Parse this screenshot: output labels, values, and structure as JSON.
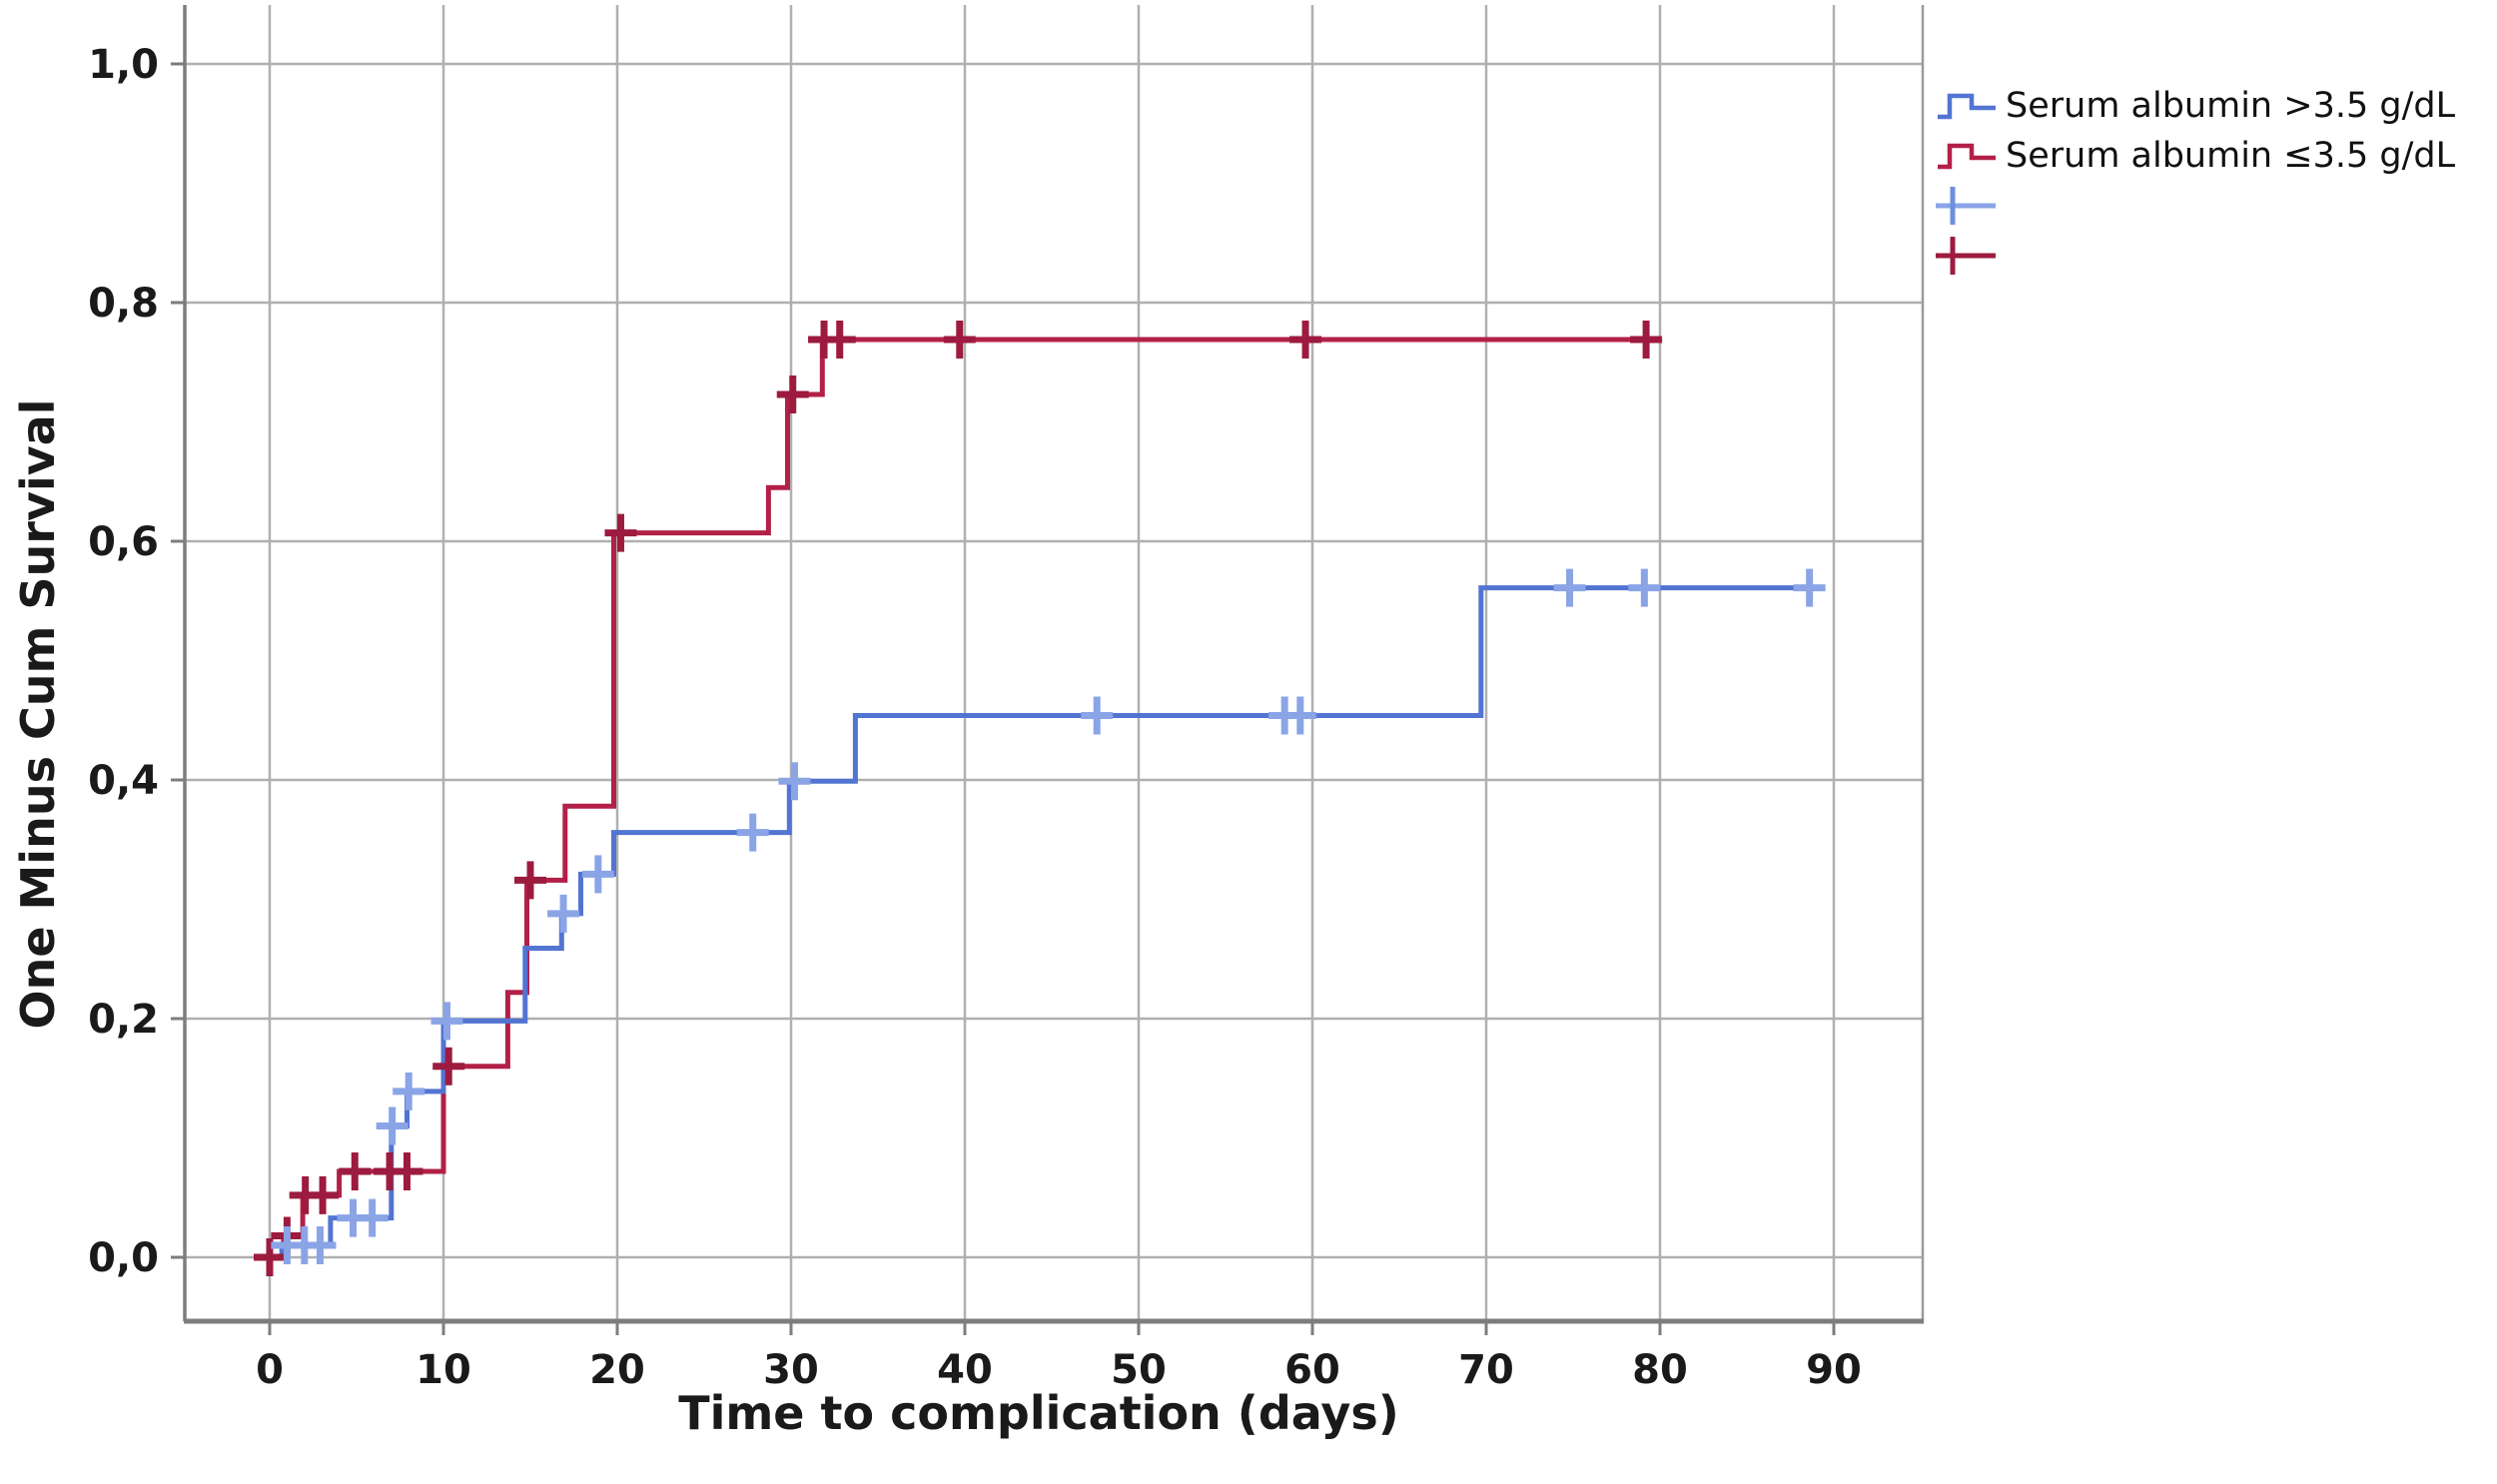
{
  "figure": {
    "background": "#ffffff"
  },
  "colors": {
    "blue_line": "#5274d2",
    "blue_censor": "#8aa4e6",
    "red_line": "#b22048",
    "red_censor": "#9c1b3f",
    "gridline": "#b0b0b0",
    "frame": "#7d7d7d",
    "text": "#1a1a1a"
  },
  "axes": {
    "x": {
      "title": "Time to complication (days)",
      "ticks": [
        0,
        10,
        20,
        30,
        40,
        50,
        60,
        70,
        80,
        90
      ],
      "tick_labels": [
        "0",
        "10",
        "20",
        "30",
        "40",
        "50",
        "60",
        "70",
        "80",
        "90"
      ]
    },
    "y": {
      "title": "One Minus Cum Survival",
      "ticks": [
        1.0,
        0.8,
        0.6,
        0.4,
        0.2,
        0.0
      ],
      "tick_labels": [
        "1,0",
        "0,8",
        "0,6",
        "0,4",
        "0,2",
        "0,0"
      ]
    }
  },
  "legend": {
    "entries": [
      {
        "label": "Serum albumin >3.5 g/dL",
        "type": "step-line",
        "color": "#5274d2"
      },
      {
        "label": "Serum albumin ≤3.5 g/dL",
        "type": "step-line",
        "color": "#b22048"
      },
      {
        "label": "",
        "type": "censor-mark",
        "color": "#8aa4e6"
      },
      {
        "label": "",
        "type": "censor-mark",
        "color": "#9c1b3f"
      }
    ]
  },
  "chart_data": {
    "type": "line",
    "subtype": "kaplan-meier-step",
    "title": "",
    "xlabel": "Time to complication (days)",
    "ylabel": "One Minus Cum Survival",
    "xlim": [
      -5,
      95
    ],
    "ylim": [
      -0.05,
      1.05
    ],
    "grid": true,
    "legend_position": "top-right",
    "x_ticks": [
      0,
      10,
      20,
      30,
      40,
      50,
      60,
      70,
      80,
      90
    ],
    "y_ticks": [
      0.0,
      0.2,
      0.4,
      0.6,
      0.8,
      1.0
    ],
    "series": [
      {
        "name": "Serum albumin ≤3.5 g/dL",
        "color": "#b22048",
        "censor_color": "#9c1b3f",
        "end_day": 79.2,
        "steps": [
          [
            0,
            0.0
          ],
          [
            0.8,
            0.018
          ],
          [
            1.9,
            0.052
          ],
          [
            4.0,
            0.072
          ],
          [
            10.0,
            0.16
          ],
          [
            13.7,
            0.222
          ],
          [
            14.8,
            0.316
          ],
          [
            17.0,
            0.378
          ],
          [
            19.8,
            0.607
          ],
          [
            28.7,
            0.645
          ],
          [
            29.8,
            0.723
          ],
          [
            31.8,
            0.769
          ]
        ],
        "censors": [
          [
            0,
            0.0
          ],
          [
            1.0,
            0.018
          ],
          [
            2.05,
            0.052
          ],
          [
            3.05,
            0.052
          ],
          [
            4.9,
            0.072
          ],
          [
            6.9,
            0.072
          ],
          [
            7.9,
            0.072
          ],
          [
            10.3,
            0.16
          ],
          [
            15.0,
            0.316
          ],
          [
            20.2,
            0.607
          ],
          [
            30.1,
            0.723
          ],
          [
            31.9,
            0.769
          ],
          [
            32.8,
            0.769
          ],
          [
            39.7,
            0.769
          ],
          [
            59.6,
            0.769
          ],
          [
            79.2,
            0.769
          ]
        ]
      },
      {
        "name": "Serum albumin >3.5 g/dL",
        "color": "#5274d2",
        "censor_color": "#8aa4e6",
        "end_day": 89.5,
        "steps": [
          [
            0,
            0.0
          ],
          [
            0.7,
            0.01
          ],
          [
            3.5,
            0.033
          ],
          [
            7.0,
            0.11
          ],
          [
            7.9,
            0.139
          ],
          [
            10.0,
            0.198
          ],
          [
            14.7,
            0.259
          ],
          [
            16.8,
            0.288
          ],
          [
            17.9,
            0.321
          ],
          [
            19.8,
            0.356
          ],
          [
            29.9,
            0.399
          ],
          [
            33.7,
            0.454
          ],
          [
            69.7,
            0.561
          ]
        ],
        "censors": [
          [
            1.0,
            0.01
          ],
          [
            2.0,
            0.01
          ],
          [
            2.9,
            0.01
          ],
          [
            4.8,
            0.033
          ],
          [
            5.9,
            0.033
          ],
          [
            7.05,
            0.11
          ],
          [
            8.0,
            0.139
          ],
          [
            10.2,
            0.198
          ],
          [
            16.9,
            0.288
          ],
          [
            18.9,
            0.321
          ],
          [
            27.8,
            0.356
          ],
          [
            30.2,
            0.399
          ],
          [
            47.6,
            0.454
          ],
          [
            58.4,
            0.454
          ],
          [
            59.3,
            0.454
          ],
          [
            74.8,
            0.561
          ],
          [
            79.1,
            0.561
          ],
          [
            88.6,
            0.561
          ]
        ]
      }
    ]
  }
}
